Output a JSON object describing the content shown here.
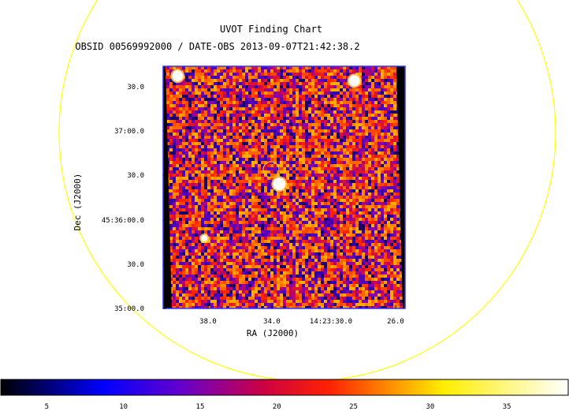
{
  "chart_data": {
    "type": "heatmap",
    "title": "UVOT Finding Chart",
    "subtitle": "OBSID 00569992000 / DATE-OBS 2013-09-07T21:42:38.2",
    "xlabel": "RA (J2000)",
    "ylabel": "Dec (J2000)",
    "x_ticks": [
      "38.0",
      "34.0",
      "14:23:30.0",
      "26.0"
    ],
    "y_ticks": [
      "30.0",
      "37:00.0",
      "30.0",
      "45:36:00.0",
      "30.0",
      "35:00.0"
    ],
    "colorbar": {
      "ticks": [
        5,
        10,
        15,
        20,
        25,
        30,
        35
      ],
      "range": [
        2,
        39
      ],
      "colormap": [
        "#000000",
        "#0000ff",
        "#6600cc",
        "#cc0044",
        "#ff2200",
        "#ff8800",
        "#ffee00",
        "#ffffff"
      ]
    },
    "sources": [
      {
        "name": "bright-star-top-left",
        "ra_tick_frac": 0.06,
        "dec_tick_frac": 0.04
      },
      {
        "name": "bright-star-top-right",
        "ra_tick_frac": 0.79,
        "dec_tick_frac": 0.06
      },
      {
        "name": "target-source",
        "ra_tick_frac": 0.48,
        "dec_tick_frac": 0.46
      },
      {
        "name": "faint-source-left",
        "ra_tick_frac": 0.17,
        "dec_tick_frac": 0.71
      }
    ],
    "annotations": [
      "target circle",
      "field-of-view circle"
    ],
    "colors": {
      "image_border": "#3333ff",
      "fov_circle": "#ffff00",
      "target_circle": "#ffcc00"
    }
  }
}
